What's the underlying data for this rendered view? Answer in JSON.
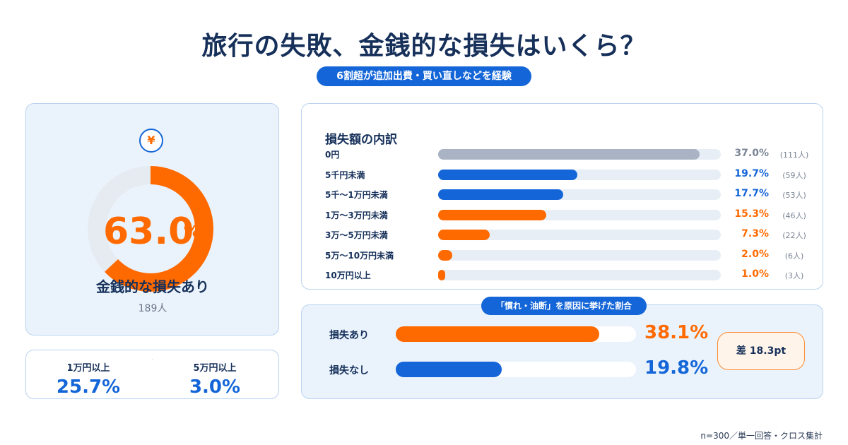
{
  "header": {
    "title": "旅行の失敗、金銭的な損失はいくら？",
    "subtitle": "6割超が追加出費・買い直しなどを経験"
  },
  "summary": {
    "icon": "yen-icon",
    "icon_glyph": "¥",
    "percent": "63.0",
    "percent_value": 63.0,
    "unit": "%",
    "label": "金銭的な損失あり",
    "count": "189人",
    "stats": [
      {
        "label": "1万円以上",
        "value": "25.7%"
      },
      {
        "label": "5万円以上",
        "value": "3.0%"
      }
    ]
  },
  "breakdown": {
    "title": "損失額の内訳"
  },
  "comparison": {
    "title": "「慣れ・油断」を原因に挙げた割合",
    "diff_label": "差 18.3pt"
  },
  "footnote": "n=300／単一回答・クロス集計",
  "colors": {
    "orange": "#ff6a00",
    "blue": "#1466d8",
    "gray": "#a9b3c4",
    "navy": "#16305a"
  },
  "chart_data": [
    {
      "type": "pie",
      "categories": [
        "金銭的な損失あり",
        ""
      ],
      "values": [
        63.0,
        37.0
      ]
    },
    {
      "type": "bar",
      "title": "損失額の内訳",
      "categories": [
        "0円",
        "5千円未満",
        "5千〜1万円未満",
        "1万〜3万円未満",
        "3万〜5万円未満",
        "5万〜10万円未満",
        "10万円以上"
      ],
      "values": [
        37.0,
        19.7,
        17.7,
        15.3,
        7.3,
        2.0,
        1.0
      ],
      "value_labels": [
        "37.0%",
        "19.7%",
        "17.7%",
        "15.3%",
        "7.3%",
        "2.0%",
        "1.0%"
      ],
      "counts": [
        "(111人)",
        "(59人)",
        "(53人)",
        "(46人)",
        "(22人)",
        "(6人)",
        "(3人)"
      ],
      "colors": [
        "gray",
        "blue",
        "blue",
        "orange",
        "orange",
        "orange",
        "orange"
      ],
      "ylim": [
        0,
        40
      ]
    },
    {
      "type": "bar",
      "title": "「慣れ・油断」を原因に挙げた割合",
      "categories": [
        "損失あり",
        "損失なし"
      ],
      "values": [
        38.1,
        19.8
      ],
      "value_labels": [
        "38.1%",
        "19.8%"
      ],
      "colors": [
        "orange",
        "blue"
      ],
      "ylim": [
        0,
        45
      ]
    }
  ]
}
